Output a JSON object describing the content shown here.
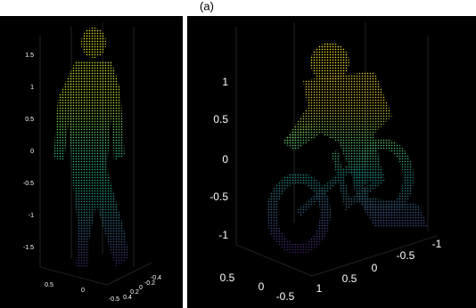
{
  "caption": "(a)",
  "left_plot": {
    "z_ticks": [
      "1.5",
      "1",
      "0.5",
      "0",
      "-0.5",
      "-1",
      "-1.5"
    ],
    "x_ticks": [
      "0.5",
      "0",
      "-0.5"
    ],
    "y_ticks": [
      "-0.4",
      "-0.2",
      "0",
      "0.2",
      "0.4"
    ]
  },
  "right_plot": {
    "z_ticks": [
      "1",
      "0.5",
      "0",
      "-0.5",
      "-1"
    ],
    "x_ticks": [
      "0.5",
      "0",
      "-0.5"
    ],
    "y_ticks": [
      "1",
      "0.5",
      "0",
      "-0.5",
      "-1"
    ]
  }
}
